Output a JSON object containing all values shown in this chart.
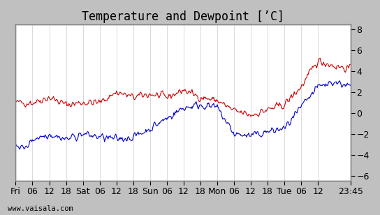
{
  "title": "Temperature and Dewpoint [’C]",
  "ylabel_right_ticks": [
    -6,
    -4,
    -2,
    0,
    2,
    4,
    6,
    8
  ],
  "ylim": [
    -6.5,
    8.5
  ],
  "bg_color": "#ffffff",
  "border_color": "#aaaaaa",
  "line_color_temp": "#cc0000",
  "line_color_dew": "#0000cc",
  "xlabel_bottom": "www.vaisala.com",
  "xtick_labels": [
    "Fri",
    "06",
    "12",
    "18",
    "Sat",
    "06",
    "12",
    "18",
    "Sun",
    "06",
    "12",
    "18",
    "Mon",
    "06",
    "12",
    "18",
    "Tue",
    "06",
    "12",
    "23:45"
  ],
  "grid_color": "#cccccc",
  "title_fontsize": 12,
  "tick_fontsize": 9
}
